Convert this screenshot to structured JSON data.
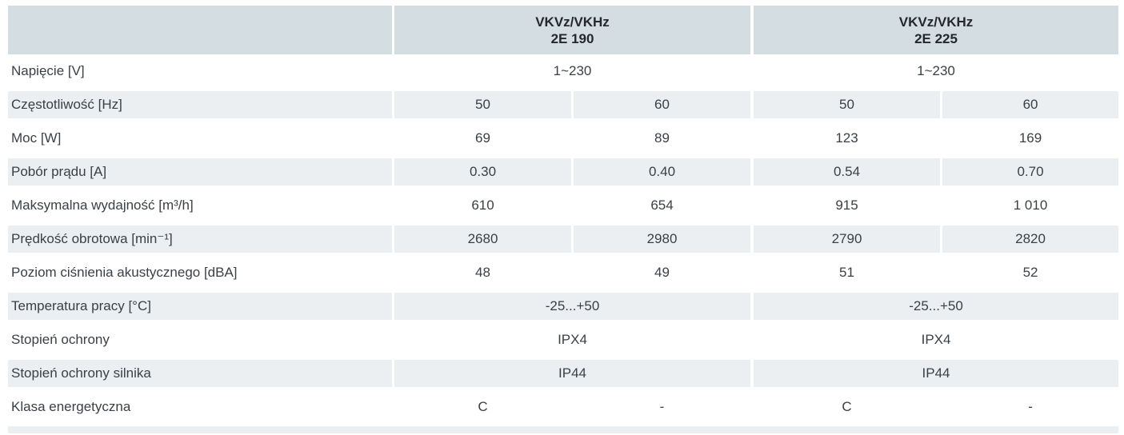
{
  "colors": {
    "header_bg": "#d4dde2",
    "stripe_bg": "#ebeff2",
    "text": "#3b4046",
    "heading_text": "#24282d"
  },
  "table": {
    "groups": [
      {
        "line1": "VKVz/VKHz",
        "line2": "2E 190"
      },
      {
        "line1": "VKVz/VKHz",
        "line2": "2E 225"
      }
    ],
    "rows": [
      {
        "label": "Napięcie [V]",
        "values": [
          "1~230",
          "1~230"
        ]
      },
      {
        "label": "Częstotliwość [Hz]",
        "values": [
          "50",
          "60",
          "50",
          "60"
        ]
      },
      {
        "label": "Moc [W]",
        "values": [
          "69",
          "89",
          "123",
          "169"
        ]
      },
      {
        "label": "Pobór prądu [A]",
        "values": [
          "0.30",
          "0.40",
          "0.54",
          "0.70"
        ]
      },
      {
        "label": "Maksymalna wydajność [m³/h]",
        "values": [
          "610",
          "654",
          "915",
          "1 010"
        ]
      },
      {
        "label": "Prędkość obrotowa [min⁻¹]",
        "values": [
          "2680",
          "2980",
          "2790",
          "2820"
        ]
      },
      {
        "label": "Poziom ciśnienia akustycznego [dBA]",
        "values": [
          "48",
          "49",
          "51",
          "52"
        ]
      },
      {
        "label": "Temperatura pracy [°C]",
        "values": [
          "-25...+50",
          "-25...+50"
        ]
      },
      {
        "label": "Stopień ochrony",
        "values": [
          "IPX4",
          "IPX4"
        ]
      },
      {
        "label": "Stopień ochrony silnika",
        "values": [
          "IP44",
          "IP44"
        ]
      },
      {
        "label": "Klasa energetyczna",
        "values": [
          "C",
          "-",
          "C",
          "-"
        ]
      }
    ]
  }
}
